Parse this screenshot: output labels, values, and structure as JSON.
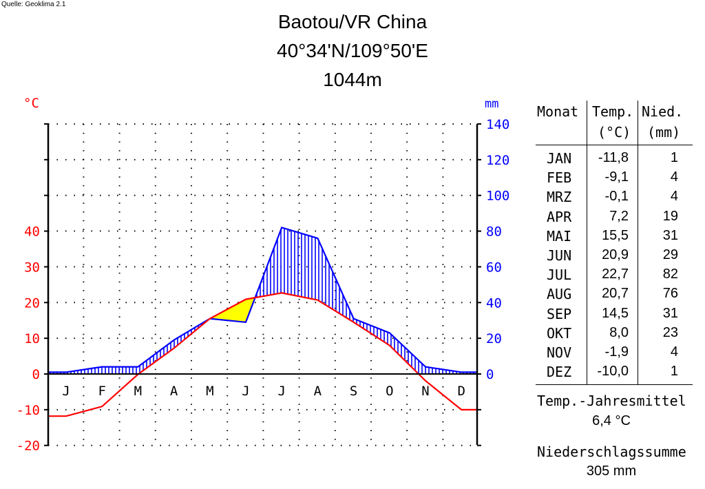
{
  "source": "Quelle: Geoklima 2.1",
  "title": {
    "line1": "Baotou/VR China",
    "line2": "40°34'N/109°50'E",
    "line3": "1044m"
  },
  "colors": {
    "temperature": "#ff0000",
    "precipitation": "#0000ff",
    "arid_fill": "#ffff00",
    "axis": "#000000"
  },
  "chart_data": {
    "type": "line",
    "categories": [
      "J",
      "F",
      "M",
      "A",
      "M",
      "J",
      "J",
      "A",
      "S",
      "O",
      "N",
      "D"
    ],
    "series": [
      {
        "name": "Temp.",
        "unit": "°C",
        "values": [
          -11.8,
          -9.1,
          -0.1,
          7.2,
          15.5,
          20.9,
          22.7,
          20.7,
          14.5,
          8.0,
          -1.9,
          -10.0
        ]
      },
      {
        "name": "Nied.",
        "unit": "mm",
        "values": [
          1,
          4,
          4,
          19,
          31,
          29,
          82,
          76,
          31,
          23,
          4,
          1
        ]
      }
    ],
    "left_unit": "°C",
    "right_unit": "mm",
    "left_ticks": [
      -20,
      -10,
      0,
      10,
      20,
      30,
      40
    ],
    "left_tick_labels": [
      "-20",
      "-10",
      "0",
      "10",
      "20",
      "30",
      "40"
    ],
    "right_ticks": [
      0,
      20,
      40,
      60,
      80,
      100,
      120,
      140
    ],
    "right_tick_labels": [
      "0",
      "20",
      "40",
      "60",
      "80",
      "100",
      "120",
      "140"
    ],
    "ylim_temp": [
      -20,
      70
    ],
    "ylim_precip": [
      -40,
      140
    ],
    "grid": true
  },
  "table": {
    "headers": {
      "month": "Monat",
      "temp1": "Temp.",
      "temp2": "(°C)",
      "prec1": "Nied.",
      "prec2": "(mm)"
    },
    "rows": [
      {
        "month": "JAN",
        "temp": "-11,8",
        "prec": "1"
      },
      {
        "month": "FEB",
        "temp": "-9,1",
        "prec": "4"
      },
      {
        "month": "MRZ",
        "temp": "-0,1",
        "prec": "4"
      },
      {
        "month": "APR",
        "temp": "7,2",
        "prec": "19"
      },
      {
        "month": "MAI",
        "temp": "15,5",
        "prec": "31"
      },
      {
        "month": "JUN",
        "temp": "20,9",
        "prec": "29"
      },
      {
        "month": "JUL",
        "temp": "22,7",
        "prec": "82"
      },
      {
        "month": "AUG",
        "temp": "20,7",
        "prec": "76"
      },
      {
        "month": "SEP",
        "temp": "14,5",
        "prec": "31"
      },
      {
        "month": "OKT",
        "temp": "8,0",
        "prec": "23"
      },
      {
        "month": "NOV",
        "temp": "-1,9",
        "prec": "4"
      },
      {
        "month": "DEZ",
        "temp": "-10,0",
        "prec": "1"
      }
    ]
  },
  "summary": {
    "temp_label": "Temp.-Jahresmittel",
    "temp_value": "6,4 °C",
    "precip_label": "Niederschlagssumme",
    "precip_value": "305 mm"
  }
}
